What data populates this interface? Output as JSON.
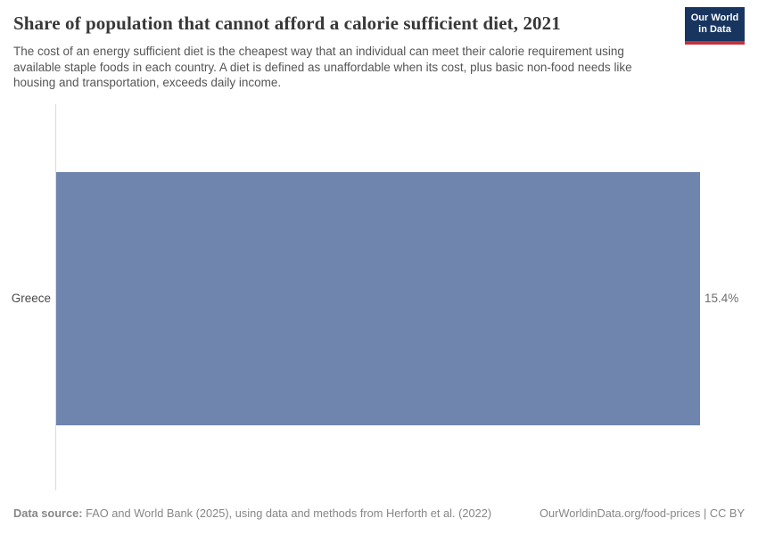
{
  "header": {
    "title": "Share of population that cannot afford a calorie sufficient diet, 2021",
    "subtitle": "The cost of an energy sufficient diet is the cheapest way that an individual can meet their calorie requirement using available staple foods in each country. A diet is defined as unaffordable when its cost, plus basic non-food needs like housing and transportation, exceeds daily income.",
    "logo": {
      "line1": "Our World",
      "line2": "in Data"
    }
  },
  "chart_data": {
    "type": "bar",
    "orientation": "horizontal",
    "title": "Share of population that cannot afford a calorie sufficient diet, 2021",
    "categories": [
      "Greece"
    ],
    "values": [
      15.4
    ],
    "value_labels": [
      "15.4%"
    ],
    "xlabel": "",
    "ylabel": "",
    "xlim": [
      0,
      15.4
    ],
    "grid": false,
    "legend": false,
    "bar_color": "#6f85ae"
  },
  "footer": {
    "data_source_label": "Data source:",
    "data_source_text": " FAO and World Bank (2025), using data and methods from Herforth et al. (2022)",
    "origin_text": "OurWorldinData.org/food-prices | CC BY"
  },
  "colors": {
    "bar": "#6f85ae",
    "logo_background": "#18355f",
    "logo_accent_red": "#c5313d",
    "axis_line": "#dcdcdc",
    "title_text": "#383838",
    "subtitle_text": "#555555",
    "footer_text": "#878787"
  }
}
